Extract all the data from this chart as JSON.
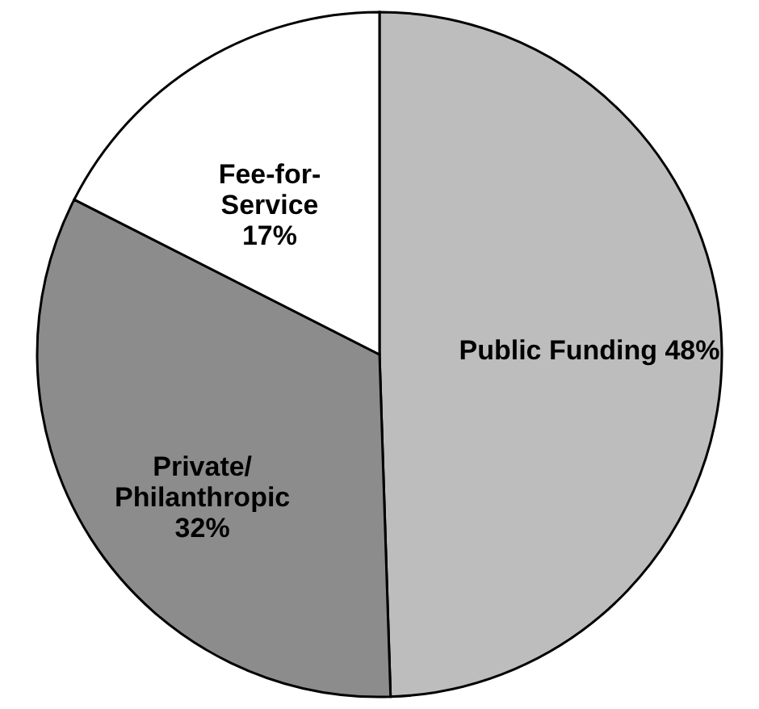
{
  "chart_data": {
    "type": "pie",
    "categories": [
      "Public Funding",
      "Private/\nPhilanthropic",
      "Fee-for-\nService"
    ],
    "values": [
      48,
      32,
      17
    ],
    "value_labels": [
      "48%",
      "32%",
      "17%"
    ],
    "colors": [
      "#bdbdbd",
      "#8c8c8c",
      "#ffffff"
    ]
  }
}
